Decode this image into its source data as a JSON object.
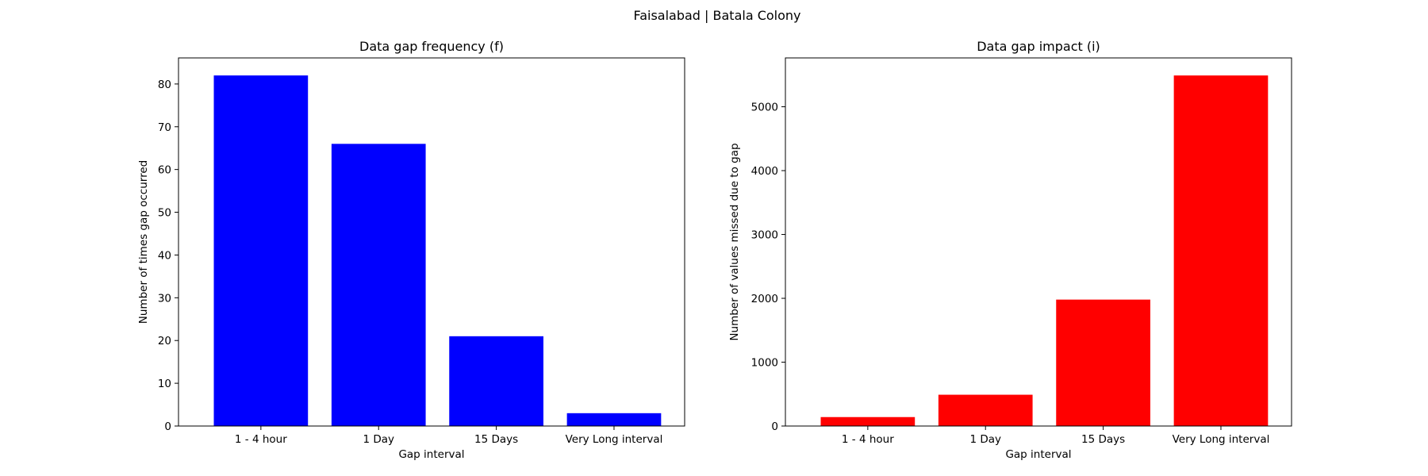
{
  "figure": {
    "title": "Faisalabad | Batala Colony"
  },
  "chart_data": [
    {
      "type": "bar",
      "title": "Data gap frequency (f)",
      "xlabel": "Gap interval",
      "ylabel": "Number of times gap occurred",
      "categories": [
        "1 - 4 hour",
        "1 Day",
        "15 Days",
        "Very Long interval"
      ],
      "values": [
        82,
        66,
        21,
        3
      ],
      "color": "#0000ff",
      "ylim": [
        0,
        86.1
      ],
      "yticks": [
        0,
        10,
        20,
        30,
        40,
        50,
        60,
        70,
        80
      ],
      "grid": false,
      "legend": "none"
    },
    {
      "type": "bar",
      "title": "Data gap impact (i)",
      "xlabel": "Gap interval",
      "ylabel": "Number of values missed due to gap",
      "categories": [
        "1 - 4 hour",
        "1 Day",
        "15 Days",
        "Very Long interval"
      ],
      "values": [
        140,
        490,
        1980,
        5490
      ],
      "color": "#ff0000",
      "ylim": [
        0,
        5765
      ],
      "yticks": [
        0,
        1000,
        2000,
        3000,
        4000,
        5000
      ],
      "grid": false,
      "legend": "none"
    }
  ]
}
